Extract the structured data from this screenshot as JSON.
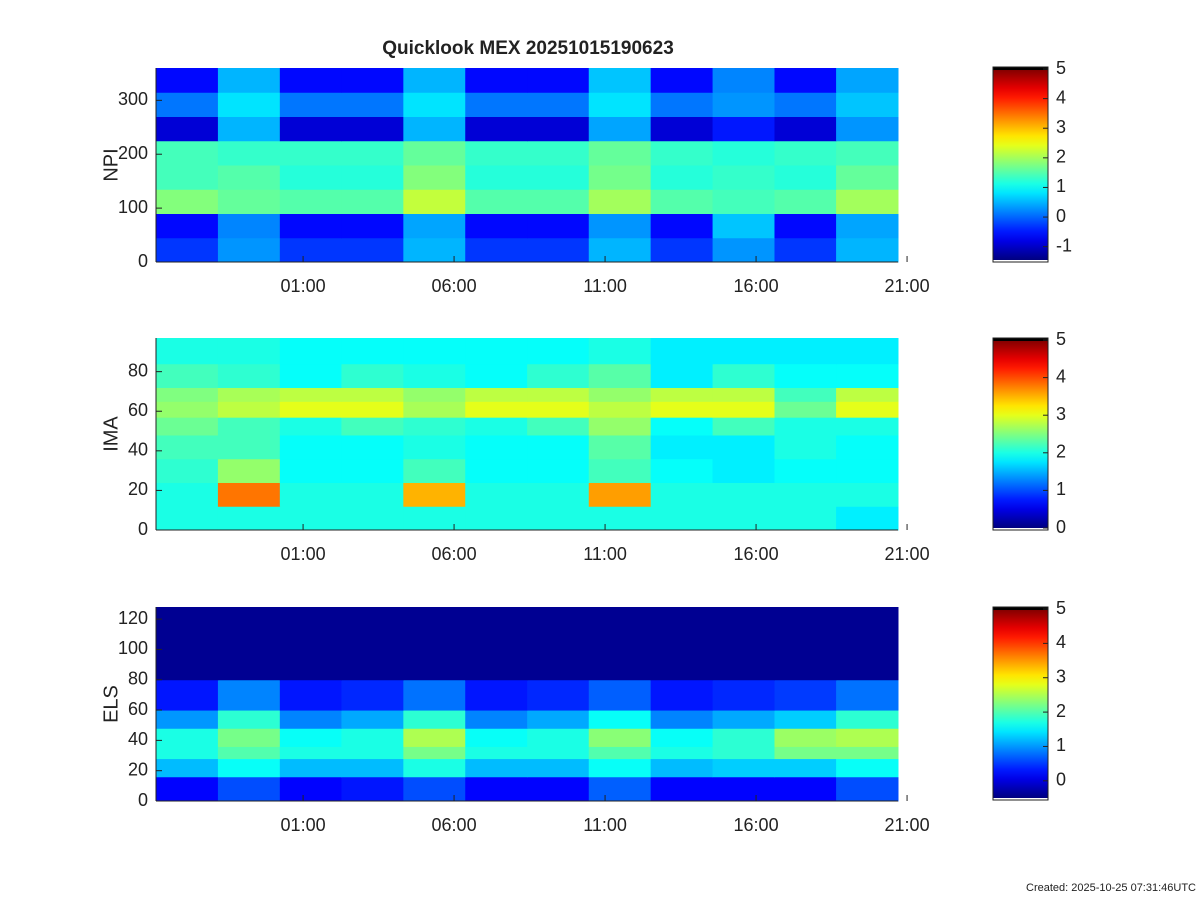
{
  "chart_data": [
    {
      "type": "heatmap",
      "title": "Quicklook MEX 20251015190623",
      "ylabel": "NPI",
      "x_edges": [
        -3.87,
        -1.82,
        0.23,
        2.27,
        4.32,
        6.37,
        8.42,
        10.46,
        12.51,
        14.56,
        16.61,
        18.65,
        20.7
      ],
      "y_edges": [
        0,
        45,
        90,
        135,
        180,
        225,
        270,
        315,
        360
      ],
      "z": [
        [
          -0.3,
          0.3,
          -0.3,
          -0.3,
          0.5,
          -0.3,
          -0.3,
          0.5,
          -0.3,
          0.3,
          -0.3,
          0.5
        ],
        [
          -0.6,
          0.2,
          -0.6,
          -0.6,
          0.4,
          -0.6,
          -0.6,
          0.3,
          -0.6,
          0.6,
          -0.6,
          0.4
        ],
        [
          1.8,
          1.6,
          1.5,
          1.5,
          2.2,
          1.5,
          1.5,
          2.0,
          1.5,
          1.4,
          1.5,
          2.0
        ],
        [
          1.4,
          1.5,
          1.2,
          1.2,
          1.8,
          1.2,
          1.2,
          1.7,
          1.2,
          1.3,
          1.2,
          1.6
        ],
        [
          1.4,
          1.3,
          1.3,
          1.3,
          1.6,
          1.3,
          1.3,
          1.6,
          1.3,
          1.2,
          1.3,
          1.4
        ],
        [
          -0.9,
          0.5,
          -0.9,
          -0.9,
          0.5,
          -0.9,
          -0.9,
          0.4,
          -0.9,
          -0.5,
          -0.9,
          0.3
        ],
        [
          0.1,
          0.8,
          0.1,
          0.1,
          0.8,
          0.1,
          0.1,
          0.8,
          0.1,
          0.3,
          0.1,
          0.6
        ],
        [
          -0.6,
          0.5,
          -0.6,
          -0.6,
          0.5,
          -0.6,
          -0.6,
          0.6,
          -0.6,
          0.2,
          -0.6,
          0.4
        ]
      ],
      "xlim": [
        -3.87,
        20.7
      ],
      "xticks": [
        {
          "value": 1,
          "label": "01:00"
        },
        {
          "value": 6,
          "label": "06:00"
        },
        {
          "value": 11,
          "label": "11:00"
        },
        {
          "value": 16,
          "label": "16:00"
        },
        {
          "value": 21,
          "label": "21:00"
        }
      ],
      "ylim": [
        0,
        360
      ],
      "yticks": [
        0,
        100,
        200,
        300
      ],
      "colormap": "jet",
      "clim": [
        -1.45,
        5
      ],
      "cticks": [
        -1,
        0,
        1,
        2,
        3,
        4,
        5
      ]
    },
    {
      "type": "heatmap",
      "ylabel": "IMA",
      "x_edges": [
        -3.87,
        -1.82,
        0.23,
        2.27,
        4.32,
        6.37,
        8.42,
        10.46,
        12.51,
        14.56,
        16.61,
        18.65,
        20.7
      ],
      "y_edges": [
        0,
        12,
        24,
        36,
        48,
        57,
        65,
        72,
        84,
        97
      ],
      "z": [
        [
          2.0,
          2.0,
          2.0,
          2.0,
          2.0,
          2.0,
          2.0,
          2.0,
          2.0,
          2.0,
          2.0,
          1.8
        ],
        [
          2.0,
          3.8,
          2.0,
          2.0,
          3.5,
          2.0,
          2.0,
          3.6,
          2.0,
          2.0,
          2.0,
          2.0
        ],
        [
          2.1,
          2.6,
          1.9,
          1.9,
          2.2,
          1.9,
          1.9,
          2.2,
          1.9,
          1.8,
          1.9,
          1.9
        ],
        [
          2.2,
          2.2,
          1.9,
          1.9,
          2.0,
          1.9,
          1.9,
          2.3,
          1.8,
          1.8,
          2.0,
          1.9
        ],
        [
          2.4,
          2.2,
          2.0,
          2.2,
          2.1,
          2.0,
          2.2,
          2.6,
          1.9,
          2.2,
          2.0,
          2.0
        ],
        [
          2.6,
          2.8,
          3.0,
          3.0,
          2.7,
          3.0,
          3.0,
          2.8,
          3.0,
          3.0,
          2.4,
          3.0
        ],
        [
          2.5,
          2.7,
          2.8,
          2.8,
          2.6,
          2.8,
          2.8,
          2.6,
          2.8,
          2.8,
          2.2,
          2.8
        ],
        [
          2.2,
          2.1,
          1.9,
          2.1,
          2.0,
          1.9,
          2.1,
          2.3,
          1.8,
          2.1,
          1.9,
          1.9
        ],
        [
          2.0,
          2.0,
          1.9,
          1.9,
          1.9,
          1.9,
          1.9,
          2.0,
          1.8,
          1.8,
          1.8,
          1.8
        ]
      ],
      "xlim": [
        -3.87,
        20.7
      ],
      "xticks": [
        {
          "value": 1,
          "label": "01:00"
        },
        {
          "value": 6,
          "label": "06:00"
        },
        {
          "value": 11,
          "label": "11:00"
        },
        {
          "value": 16,
          "label": "16:00"
        },
        {
          "value": 21,
          "label": "21:00"
        }
      ],
      "ylim": [
        0,
        97
      ],
      "yticks": [
        0,
        20,
        40,
        60,
        80
      ],
      "colormap": "jet",
      "clim": [
        0,
        5
      ],
      "cticks": [
        0,
        1,
        2,
        3,
        4,
        5
      ]
    },
    {
      "type": "heatmap",
      "ylabel": "ELS",
      "x_edges": [
        -3.87,
        -1.82,
        0.23,
        2.27,
        4.32,
        6.37,
        8.42,
        10.46,
        12.51,
        14.56,
        16.61,
        18.65,
        20.7
      ],
      "y_edges": [
        0,
        16,
        28,
        36,
        48,
        60,
        80,
        128
      ],
      "z": [
        [
          0.2,
          0.6,
          0.2,
          0.3,
          0.6,
          0.2,
          0.2,
          0.7,
          0.2,
          0.2,
          0.2,
          0.6
        ],
        [
          1.2,
          1.6,
          1.2,
          1.2,
          1.7,
          1.2,
          1.2,
          1.6,
          1.2,
          1.3,
          1.3,
          1.6
        ],
        [
          1.7,
          2.0,
          1.7,
          1.7,
          2.2,
          1.7,
          1.7,
          2.0,
          1.7,
          1.8,
          2.2,
          2.2
        ],
        [
          1.7,
          2.2,
          1.6,
          1.7,
          2.5,
          1.6,
          1.7,
          2.3,
          1.6,
          1.8,
          2.4,
          2.5
        ],
        [
          1.0,
          1.8,
          0.9,
          1.1,
          1.8,
          0.9,
          1.1,
          1.6,
          0.9,
          1.1,
          1.3,
          1.8
        ],
        [
          0.3,
          0.9,
          0.3,
          0.4,
          0.8,
          0.3,
          0.4,
          0.7,
          0.3,
          0.4,
          0.5,
          0.8
        ],
        [
          -0.4,
          -0.4,
          -0.4,
          -0.4,
          -0.4,
          -0.4,
          -0.4,
          -0.4,
          -0.4,
          -0.4,
          -0.4,
          -0.4
        ]
      ],
      "xlim": [
        -3.87,
        20.7
      ],
      "xticks": [
        {
          "value": 1,
          "label": "01:00"
        },
        {
          "value": 6,
          "label": "06:00"
        },
        {
          "value": 11,
          "label": "11:00"
        },
        {
          "value": 16,
          "label": "16:00"
        },
        {
          "value": 21,
          "label": "21:00"
        }
      ],
      "ylim": [
        0,
        128
      ],
      "yticks": [
        0,
        20,
        40,
        60,
        80,
        100,
        120
      ],
      "colormap": "jet",
      "clim": [
        -0.5,
        5
      ],
      "cticks": [
        0,
        1,
        2,
        3,
        4,
        5
      ]
    }
  ],
  "footer": "Created: 2025-10-25 07:31:46UTC"
}
